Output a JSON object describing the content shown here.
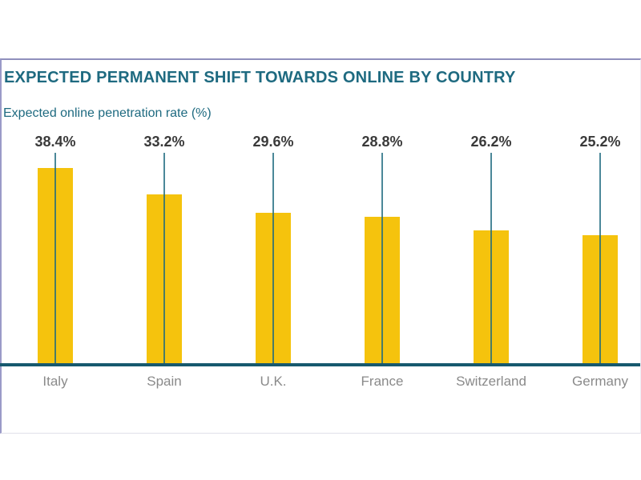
{
  "chart_data": {
    "type": "bar",
    "title": "EXPECTED PERMANENT SHIFT TOWARDS ONLINE BY COUNTRY",
    "ylabel": "Expected online penetration rate (%)",
    "xlabel": "",
    "categories": [
      "Italy",
      "Spain",
      "U.K.",
      "France",
      "Switzerland",
      "Germany"
    ],
    "values": [
      38.4,
      33.2,
      29.6,
      28.8,
      26.2,
      25.2
    ],
    "value_labels": [
      "38.4%",
      "33.2%",
      "29.6%",
      "28.8%",
      "26.2%",
      "25.2%"
    ],
    "ylim": [
      0,
      40
    ],
    "grid": false,
    "legend": "none",
    "colors": {
      "bar": "#f5c30d",
      "axis_line": "#17596e",
      "reference_line": "#1e6a80",
      "title_text": "#1e6a80",
      "value_text": "#3a3a3a",
      "category_text": "#8a8a8a",
      "panel_border": "#9a9ac8"
    }
  }
}
